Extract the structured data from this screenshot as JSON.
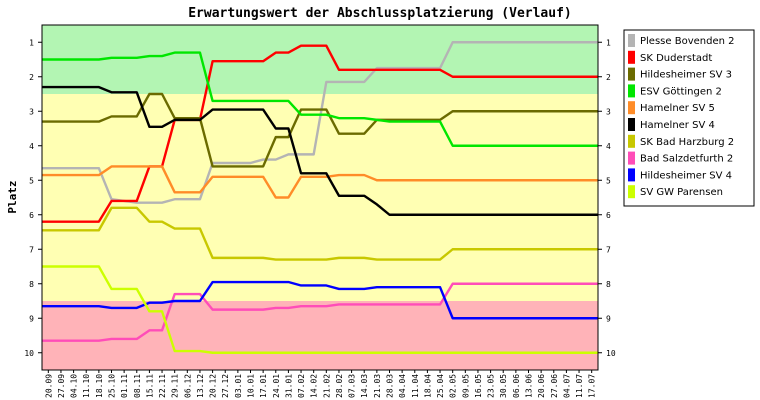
{
  "chart_data": {
    "type": "line",
    "title": "Erwartungswert der Abschlussplatzierung (Verlauf)",
    "ylabel": "Platz",
    "xlabel": "",
    "ylim": [
      0.5,
      10.5
    ],
    "y_inverted": true,
    "y_ticks": [
      "1",
      "2",
      "3",
      "4",
      "5",
      "6",
      "7",
      "8",
      "9",
      "10"
    ],
    "categories": [
      "20.09",
      "27.09",
      "04.10",
      "11.10",
      "18.10",
      "25.10",
      "01.11",
      "08.11",
      "15.11",
      "22.11",
      "29.11",
      "06.12",
      "13.12",
      "20.12",
      "27.12",
      "03.01",
      "10.01",
      "17.01",
      "24.01",
      "31.01",
      "07.02",
      "14.02",
      "21.02",
      "28.02",
      "07.03",
      "14.03",
      "21.03",
      "28.03",
      "04.04",
      "11.04",
      "18.04",
      "25.04",
      "02.05",
      "09.05",
      "16.05",
      "23.05",
      "30.05",
      "06.06",
      "13.06",
      "20.06",
      "27.06",
      "04.07",
      "11.07",
      "17.07"
    ],
    "zones": [
      {
        "name": "green",
        "from": 0.5,
        "to": 2.5,
        "color": "#b3f5b3"
      },
      {
        "name": "yellow",
        "from": 2.5,
        "to": 8.5,
        "color": "#ffffb3"
      },
      {
        "name": "red",
        "from": 8.5,
        "to": 10.5,
        "color": "#ffb3b8"
      }
    ],
    "legend_position": "right",
    "grid": false,
    "series": [
      {
        "name": "Plesse Bovenden 2",
        "color": "#b4b4b4",
        "values": [
          4.65,
          4.65,
          4.65,
          4.65,
          4.65,
          5.55,
          5.6,
          5.65,
          5.65,
          5.65,
          5.55,
          5.55,
          5.55,
          4.5,
          4.5,
          4.5,
          4.5,
          4.4,
          4.4,
          4.25,
          4.25,
          4.25,
          2.15,
          2.15,
          2.15,
          2.15,
          1.75,
          1.75,
          1.75,
          1.75,
          1.75,
          1.75,
          1.0,
          1.0,
          1.0,
          1.0,
          1.0,
          1.0,
          1.0,
          1.0,
          1.0,
          1.0,
          1.0,
          1.0
        ]
      },
      {
        "name": "SK Duderstadt",
        "color": "#ff0000",
        "values": [
          6.2,
          6.2,
          6.2,
          6.2,
          6.2,
          5.6,
          5.6,
          5.6,
          4.6,
          4.6,
          3.25,
          3.25,
          3.25,
          1.55,
          1.55,
          1.55,
          1.55,
          1.55,
          1.3,
          1.3,
          1.1,
          1.1,
          1.1,
          1.8,
          1.8,
          1.8,
          1.8,
          1.8,
          1.8,
          1.8,
          1.8,
          1.8,
          2.0,
          2.0,
          2.0,
          2.0,
          2.0,
          2.0,
          2.0,
          2.0,
          2.0,
          2.0,
          2.0,
          2.0
        ]
      },
      {
        "name": "Hildesheimer SV 3",
        "color": "#6b6b00",
        "values": [
          3.3,
          3.3,
          3.3,
          3.3,
          3.3,
          3.15,
          3.15,
          3.15,
          2.5,
          2.5,
          3.2,
          3.2,
          3.2,
          4.6,
          4.6,
          4.6,
          4.6,
          4.6,
          3.75,
          3.75,
          2.95,
          2.95,
          2.95,
          3.65,
          3.65,
          3.65,
          3.25,
          3.25,
          3.25,
          3.25,
          3.25,
          3.25,
          3.0,
          3.0,
          3.0,
          3.0,
          3.0,
          3.0,
          3.0,
          3.0,
          3.0,
          3.0,
          3.0,
          3.0
        ]
      },
      {
        "name": "ESV Göttingen 2",
        "color": "#00e600",
        "values": [
          1.5,
          1.5,
          1.5,
          1.5,
          1.5,
          1.45,
          1.45,
          1.45,
          1.4,
          1.4,
          1.3,
          1.3,
          1.3,
          2.7,
          2.7,
          2.7,
          2.7,
          2.7,
          2.7,
          2.7,
          3.1,
          3.1,
          3.1,
          3.2,
          3.2,
          3.2,
          3.25,
          3.3,
          3.3,
          3.3,
          3.3,
          3.3,
          4.0,
          4.0,
          4.0,
          4.0,
          4.0,
          4.0,
          4.0,
          4.0,
          4.0,
          4.0,
          4.0,
          4.0
        ]
      },
      {
        "name": "Hamelner SV 5",
        "color": "#ff8c28",
        "values": [
          4.85,
          4.85,
          4.85,
          4.85,
          4.85,
          4.6,
          4.6,
          4.6,
          4.6,
          4.6,
          5.35,
          5.35,
          5.35,
          4.9,
          4.9,
          4.9,
          4.9,
          4.9,
          5.5,
          5.5,
          4.9,
          4.9,
          4.9,
          4.85,
          4.85,
          4.85,
          5.0,
          5.0,
          5.0,
          5.0,
          5.0,
          5.0,
          5.0,
          5.0,
          5.0,
          5.0,
          5.0,
          5.0,
          5.0,
          5.0,
          5.0,
          5.0,
          5.0,
          5.0
        ]
      },
      {
        "name": "Hamelner SV 4",
        "color": "#000000",
        "values": [
          2.3,
          2.3,
          2.3,
          2.3,
          2.3,
          2.45,
          2.45,
          2.45,
          3.45,
          3.45,
          3.25,
          3.25,
          3.25,
          2.95,
          2.95,
          2.95,
          2.95,
          2.95,
          3.5,
          3.5,
          4.8,
          4.8,
          4.8,
          5.45,
          5.45,
          5.45,
          5.7,
          6.0,
          6.0,
          6.0,
          6.0,
          6.0,
          6.0,
          6.0,
          6.0,
          6.0,
          6.0,
          6.0,
          6.0,
          6.0,
          6.0,
          6.0,
          6.0,
          6.0
        ]
      },
      {
        "name": "SK Bad Harzburg 2",
        "color": "#c8c800",
        "values": [
          6.45,
          6.45,
          6.45,
          6.45,
          6.45,
          5.8,
          5.8,
          5.8,
          6.2,
          6.2,
          6.4,
          6.4,
          6.4,
          7.25,
          7.25,
          7.25,
          7.25,
          7.25,
          7.3,
          7.3,
          7.3,
          7.3,
          7.3,
          7.25,
          7.25,
          7.25,
          7.3,
          7.3,
          7.3,
          7.3,
          7.3,
          7.3,
          7.0,
          7.0,
          7.0,
          7.0,
          7.0,
          7.0,
          7.0,
          7.0,
          7.0,
          7.0,
          7.0,
          7.0
        ]
      },
      {
        "name": "Bad Salzdetfurth 2",
        "color": "#ff4db8",
        "values": [
          9.65,
          9.65,
          9.65,
          9.65,
          9.65,
          9.6,
          9.6,
          9.6,
          9.35,
          9.35,
          8.3,
          8.3,
          8.3,
          8.75,
          8.75,
          8.75,
          8.75,
          8.75,
          8.7,
          8.7,
          8.65,
          8.65,
          8.65,
          8.6,
          8.6,
          8.6,
          8.6,
          8.6,
          8.6,
          8.6,
          8.6,
          8.6,
          8.0,
          8.0,
          8.0,
          8.0,
          8.0,
          8.0,
          8.0,
          8.0,
          8.0,
          8.0,
          8.0,
          8.0
        ]
      },
      {
        "name": "Hildesheimer SV 4",
        "color": "#0000ff",
        "values": [
          8.65,
          8.65,
          8.65,
          8.65,
          8.65,
          8.7,
          8.7,
          8.7,
          8.55,
          8.55,
          8.5,
          8.5,
          8.5,
          7.95,
          7.95,
          7.95,
          7.95,
          7.95,
          7.95,
          7.95,
          8.05,
          8.05,
          8.05,
          8.15,
          8.15,
          8.15,
          8.1,
          8.1,
          8.1,
          8.1,
          8.1,
          8.1,
          9.0,
          9.0,
          9.0,
          9.0,
          9.0,
          9.0,
          9.0,
          9.0,
          9.0,
          9.0,
          9.0,
          9.0
        ]
      },
      {
        "name": "SV GW Parensen",
        "color": "#ccff00",
        "values": [
          7.5,
          7.5,
          7.5,
          7.5,
          7.5,
          8.15,
          8.15,
          8.15,
          8.8,
          8.8,
          9.95,
          9.95,
          9.95,
          10.0,
          10.0,
          10.0,
          10.0,
          10.0,
          10.0,
          10.0,
          10.0,
          10.0,
          10.0,
          10.0,
          10.0,
          10.0,
          10.0,
          10.0,
          10.0,
          10.0,
          10.0,
          10.0,
          10.0,
          10.0,
          10.0,
          10.0,
          10.0,
          10.0,
          10.0,
          10.0,
          10.0,
          10.0,
          10.0,
          10.0
        ]
      }
    ]
  }
}
